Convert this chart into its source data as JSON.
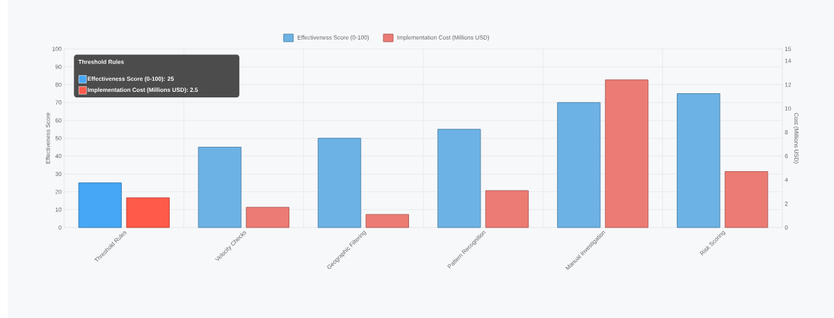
{
  "chart_data": {
    "type": "bar",
    "categories": [
      "Threshold Rules",
      "Velocity Checks",
      "Geographic Filtering",
      "Pattern Recognition",
      "Manual Investigation",
      "Risk Scoring"
    ],
    "series": [
      {
        "name": "Effectiveness Score (0-100)",
        "color": "#6cb2e4",
        "colors": [
          "#45a7f5",
          "#6cb2e4",
          "#6cb2e4",
          "#6cb2e4",
          "#6cb2e4",
          "#6cb2e4"
        ],
        "values": [
          25,
          45,
          50,
          55,
          70,
          75
        ]
      },
      {
        "name": "Implementation Cost (Millions USD)",
        "color": "#ec7b73",
        "colors": [
          "#ff5a4a",
          "#ec7b73",
          "#ec7b73",
          "#ec7b73",
          "#ec7b73",
          "#ec7b73"
        ],
        "axis": "y2",
        "values": [
          2.5,
          1.7,
          1.1,
          3.1,
          12.4,
          4.7
        ]
      }
    ],
    "ylabel": "Effectiveness Score",
    "y2label": "Cost (Millions USD)",
    "ylim": [
      0,
      100
    ],
    "yticks": [
      0,
      10,
      20,
      30,
      40,
      50,
      60,
      70,
      80,
      90,
      100
    ],
    "y2lim": [
      0,
      15
    ],
    "y2ticks": [
      0,
      2,
      4,
      6,
      8,
      10,
      12,
      14,
      15
    ],
    "grid": true,
    "legend": "top",
    "annotations": [
      "Threshold Rules",
      "Effectiveness Score (0-100): 25",
      "Implementation Cost (Millions USD): 2.5"
    ]
  }
}
